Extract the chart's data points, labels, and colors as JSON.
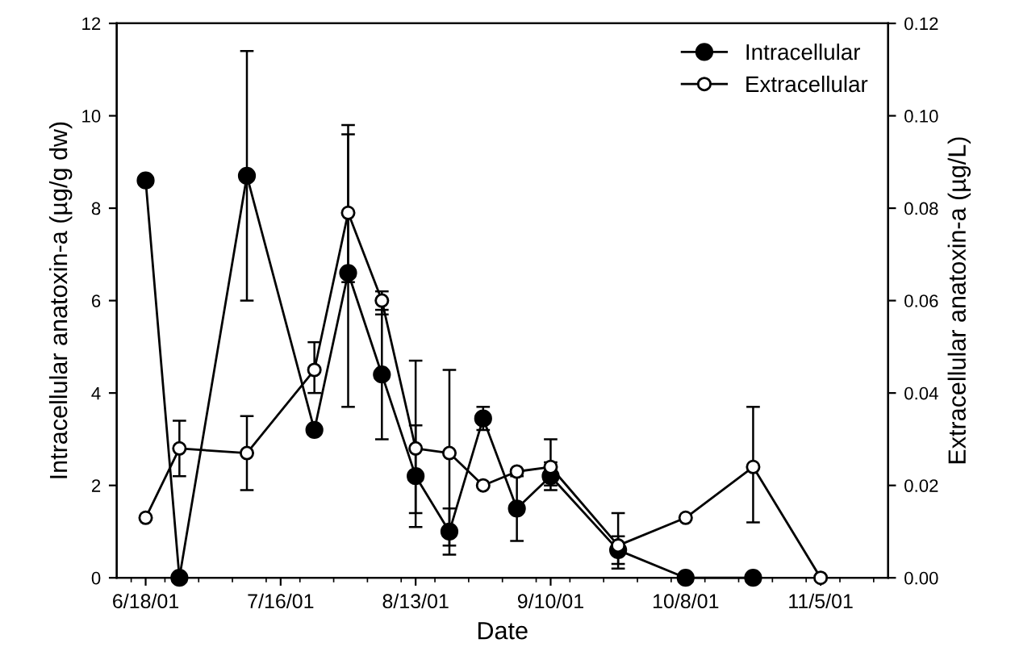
{
  "chart_data": {
    "type": "line",
    "xlabel": "Date",
    "ylabel": "Intracellular anatoxin-a (µg/g dw)",
    "y2label": "Extracellular anatoxin-a (µg/L)",
    "xlim": [
      "2001-06-12",
      "2001-11-19"
    ],
    "xticks": [
      {
        "value": "2001-06-18",
        "label": "6/18/01"
      },
      {
        "value": "2001-07-16",
        "label": "7/16/01"
      },
      {
        "value": "2001-08-13",
        "label": "8/13/01"
      },
      {
        "value": "2001-09-10",
        "label": "9/10/01"
      },
      {
        "value": "2001-10-08",
        "label": "10/8/01"
      },
      {
        "value": "2001-11-05",
        "label": "11/5/01"
      }
    ],
    "ylim": [
      0,
      12
    ],
    "yticks": [
      0,
      2,
      4,
      6,
      8,
      10,
      12
    ],
    "y2lim": [
      0,
      0.12
    ],
    "y2ticks": [
      {
        "value": 0,
        "label": "0.00"
      },
      {
        "value": 0.02,
        "label": "0.02"
      },
      {
        "value": 0.04,
        "label": "0.04"
      },
      {
        "value": 0.06,
        "label": "0.06"
      },
      {
        "value": 0.08,
        "label": "0.08"
      },
      {
        "value": 0.1,
        "label": "0.10"
      },
      {
        "value": 0.12,
        "label": "0.12"
      }
    ],
    "legend": "top right",
    "grid": false,
    "marker": "circle",
    "line_style": "solid",
    "series": [
      {
        "name": "Intracellular",
        "color": "#000000",
        "x": [
          "2001-06-18",
          "2001-06-25",
          "2001-07-09",
          "2001-07-23",
          "2001-07-30",
          "2001-08-06",
          "2001-08-13",
          "2001-08-20",
          "2001-08-27",
          "2001-09-03",
          "2001-09-10",
          "2001-09-24",
          "2001-10-08",
          "2001-10-22"
        ],
        "values": [
          8.6,
          0,
          8.7,
          3.2,
          6.6,
          4.4,
          2.2,
          1.0,
          3.45,
          1.5,
          2.2,
          0.6,
          0,
          0
        ],
        "errors": [
          null,
          null,
          [
            6.0,
            11.4
          ],
          null,
          [
            3.7,
            9.8
          ],
          [
            3.0,
            5.8
          ],
          [
            1.1,
            3.3
          ],
          [
            0.5,
            1.5
          ],
          [
            3.2,
            3.7
          ],
          [
            0.8,
            2.2
          ],
          [
            1.9,
            2.5
          ],
          [
            0.3,
            0.9
          ],
          null,
          null
        ]
      },
      {
        "name": "Extracellular",
        "color": "#000000",
        "axis": "y2",
        "x": [
          "2001-06-18",
          "2001-06-25",
          "2001-07-09",
          "2001-07-23",
          "2001-07-30",
          "2001-08-06",
          "2001-08-13",
          "2001-08-20",
          "2001-08-27",
          "2001-09-03",
          "2001-09-10",
          "2001-09-24",
          "2001-10-08",
          "2001-10-22",
          "2001-11-05"
        ],
        "values": [
          0.013,
          0.028,
          0.027,
          0.045,
          0.079,
          0.06,
          0.028,
          0.027,
          0.02,
          0.023,
          0.024,
          0.007,
          0.013,
          0.024,
          0.0
        ],
        "errors": [
          null,
          [
            0.022,
            0.034
          ],
          [
            0.019,
            0.035
          ],
          [
            0.04,
            0.051
          ],
          [
            0.064,
            0.096
          ],
          [
            0.057,
            0.062
          ],
          [
            0.014,
            0.047
          ],
          [
            0.007,
            0.045
          ],
          null,
          null,
          [
            0.02,
            0.03
          ],
          [
            0.002,
            0.014
          ],
          null,
          [
            0.012,
            0.037
          ],
          null
        ]
      }
    ]
  }
}
